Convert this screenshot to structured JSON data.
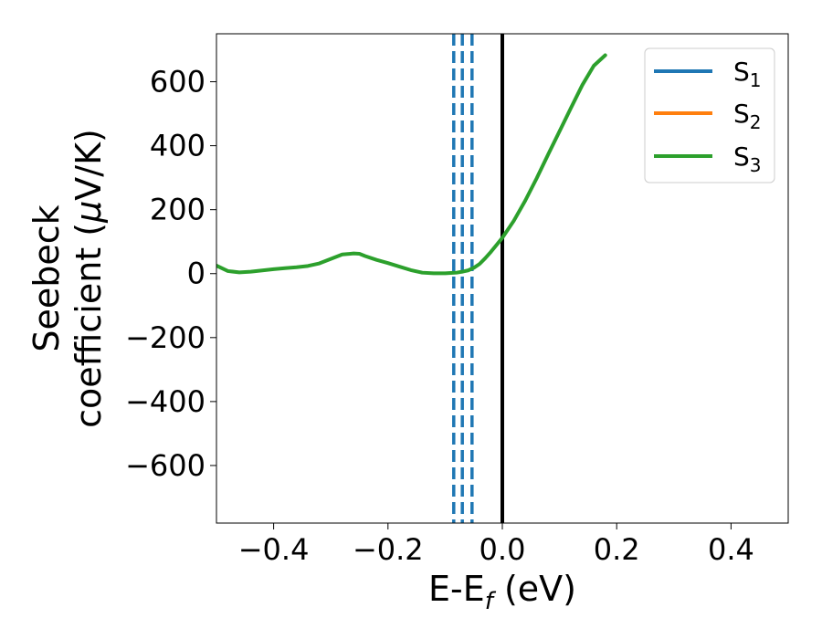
{
  "chart_data": {
    "type": "line",
    "xlabel": {
      "main": "E-E",
      "sub": "f",
      "suffix": " (eV)"
    },
    "ylabel": {
      "line1": "Seebeck",
      "line2_prefix": "coefficient  (",
      "line2_mu": "μ",
      "line2_suffix": "V/K)"
    },
    "xlim": [
      -0.5,
      0.5
    ],
    "ylim": [
      -780,
      750
    ],
    "xticks": [
      -0.4,
      -0.2,
      0.0,
      0.2,
      0.4
    ],
    "xtick_labels": [
      "−0.4",
      "−0.2",
      "0.0",
      "0.2",
      "0.4"
    ],
    "yticks": [
      -600,
      -400,
      -200,
      0,
      200,
      400,
      600
    ],
    "ytick_labels": [
      "−600",
      "−400",
      "−200",
      "0",
      "200",
      "400",
      "600"
    ],
    "grid": false,
    "legend": {
      "placement": "upper-right",
      "entries": [
        {
          "main": "S",
          "sub": "1",
          "color": "#1f77b4"
        },
        {
          "main": "S",
          "sub": "2",
          "color": "#ff7f0e"
        },
        {
          "main": "S",
          "sub": "3",
          "color": "#2ca02c"
        }
      ]
    },
    "series": [
      {
        "color": "#2ca02c",
        "x": [
          -0.5,
          -0.48,
          -0.46,
          -0.44,
          -0.42,
          -0.4,
          -0.38,
          -0.36,
          -0.34,
          -0.32,
          -0.3,
          -0.28,
          -0.26,
          -0.25,
          -0.24,
          -0.22,
          -0.2,
          -0.18,
          -0.16,
          -0.14,
          -0.12,
          -0.1,
          -0.09,
          -0.08,
          -0.07,
          -0.06,
          -0.05,
          -0.04,
          -0.03,
          -0.02,
          -0.01,
          0.0,
          0.02,
          0.04,
          0.06,
          0.08,
          0.1,
          0.12,
          0.14,
          0.16,
          0.18
        ],
        "y": [
          25,
          8,
          4,
          6,
          10,
          14,
          17,
          20,
          24,
          32,
          46,
          60,
          63,
          62,
          55,
          43,
          33,
          22,
          11,
          3,
          1,
          1,
          2,
          3,
          6,
          10,
          18,
          30,
          48,
          68,
          90,
          112,
          165,
          228,
          298,
          372,
          445,
          518,
          590,
          650,
          683
        ]
      }
    ],
    "vlines": [
      {
        "x": -0.085,
        "style": "dashed",
        "color": "#1f77b4"
      },
      {
        "x": -0.07,
        "style": "dashed",
        "color": "#1f77b4"
      },
      {
        "x": -0.053,
        "style": "dashed",
        "color": "#1f77b4"
      },
      {
        "x": 0.0,
        "style": "solid",
        "color": "#000000"
      }
    ]
  }
}
